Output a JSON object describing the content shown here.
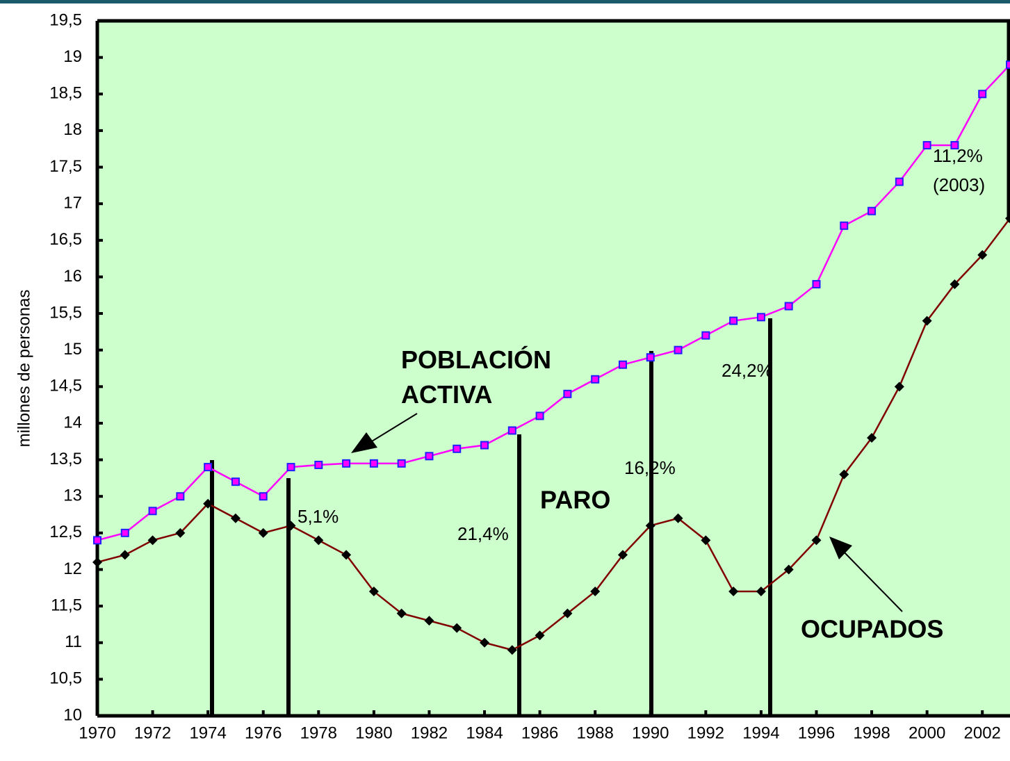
{
  "chart_data": {
    "type": "line",
    "y_label": "millones de personas",
    "x": [
      1970,
      1971,
      1972,
      1973,
      1974,
      1975,
      1976,
      1977,
      1978,
      1979,
      1980,
      1981,
      1982,
      1983,
      1984,
      1985,
      1986,
      1987,
      1988,
      1989,
      1990,
      1991,
      1992,
      1993,
      1994,
      1995,
      1996,
      1997,
      1998,
      1999,
      2000,
      2001,
      2002,
      2003
    ],
    "series": [
      {
        "name": "POBLACIÓN ACTIVA",
        "color": "#ff00ff",
        "marker_color": "#2020ff",
        "values": [
          12.4,
          12.5,
          12.8,
          13.0,
          13.4,
          13.2,
          13.0,
          13.4,
          13.43,
          13.45,
          13.45,
          13.45,
          13.55,
          13.65,
          13.7,
          13.9,
          14.1,
          14.4,
          14.6,
          14.8,
          14.9,
          15.0,
          15.2,
          15.4,
          15.45,
          15.6,
          15.9,
          16.7,
          16.9,
          17.3,
          17.8,
          17.8,
          18.5,
          18.9
        ]
      },
      {
        "name": "OCUPADOS",
        "color": "#800000",
        "marker_color": "#000000",
        "values": [
          12.1,
          12.2,
          12.4,
          12.5,
          12.9,
          12.7,
          12.5,
          12.6,
          12.4,
          12.2,
          11.7,
          11.4,
          11.3,
          11.2,
          11.0,
          10.9,
          11.1,
          11.4,
          11.7,
          12.2,
          12.6,
          12.7,
          12.4,
          11.7,
          11.7,
          12.0,
          12.4,
          13.3,
          13.8,
          14.5,
          15.4,
          15.9,
          16.3,
          16.8
        ]
      }
    ],
    "annotations": [
      "PARO",
      "5,1%",
      "21,4%",
      "16,2%",
      "24,2%",
      "11,2%",
      "(2003)"
    ],
    "xlim": [
      1970,
      2003
    ],
    "xticks": [
      1970,
      1972,
      1974,
      1976,
      1978,
      1980,
      1982,
      1984,
      1986,
      1988,
      1990,
      1992,
      1994,
      1996,
      1998,
      2000,
      2002
    ],
    "ylim": [
      10,
      19.5
    ],
    "yticks": [
      10,
      {
        "value": 10.5,
        "label": "10,5"
      },
      11,
      {
        "value": 11.5,
        "label": "11,5"
      },
      12,
      {
        "value": 12.5,
        "label": "12,5"
      },
      13,
      {
        "value": 13.5,
        "label": "13,5"
      },
      14,
      {
        "value": 14.5,
        "label": "14,5"
      },
      15,
      {
        "value": 15.5,
        "label": "15,5"
      },
      16,
      {
        "value": 16.5,
        "label": "16,5"
      },
      17,
      {
        "value": 17.5,
        "label": "17,5"
      },
      18,
      {
        "value": 18.5,
        "label": "18,5"
      },
      19,
      {
        "value": 19.5,
        "label": "19,5"
      }
    ],
    "background": "#ccffcc"
  }
}
